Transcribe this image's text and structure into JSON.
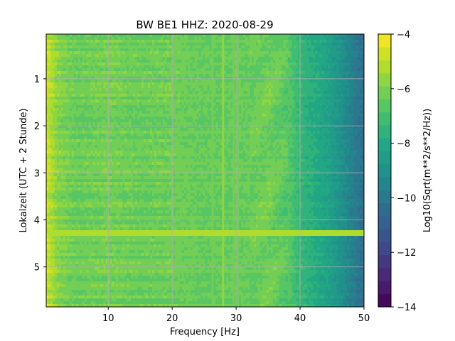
{
  "chart_data": {
    "type": "heatmap",
    "title": "BW BE1  HHZ: 2020-08-29",
    "xlabel": "Frequency [Hz]",
    "ylabel": "Lokalzeit (UTC + 2 Stunde)",
    "xlim": [
      0.3,
      50
    ],
    "ylim": [
      5.85,
      0.05
    ],
    "y_inverted": true,
    "xticks": [
      10,
      20,
      30,
      40,
      50
    ],
    "yticks": [
      1,
      2,
      3,
      4,
      5
    ],
    "grid": true,
    "colormap": "viridis (21 discrete levels)",
    "colorbar": {
      "label": "Log10(Sqrt(m**2/s**2/Hz))",
      "range": [
        -14,
        -4
      ],
      "ticks": [
        -4,
        -6,
        -8,
        -10,
        -12,
        -14
      ]
    },
    "value_profile_by_frequency": {
      "frequency_hz": [
        0.5,
        1,
        2,
        5,
        10,
        15,
        20,
        25,
        30,
        35,
        38,
        40,
        42,
        44,
        46,
        48,
        50
      ],
      "log10_amplitude": [
        -4.8,
        -5.2,
        -5.8,
        -6.3,
        -6.1,
        -6.3,
        -6.2,
        -6.4,
        -6.4,
        -6.2,
        -6.6,
        -7.4,
        -7.8,
        -8.2,
        -8.8,
        -9.6,
        -10.4
      ]
    },
    "features": [
      {
        "type": "horizontal_line",
        "time": 4.28,
        "value": -5.2,
        "freq_range": [
          1,
          50
        ]
      },
      {
        "type": "vertical_line",
        "frequency_hz": 26.2,
        "value": -6.0
      },
      {
        "type": "vertical_line",
        "frequency_hz": 28.0,
        "value": -5.8
      },
      {
        "type": "vertical_line",
        "frequency_hz": 29.6,
        "value": -6.0
      },
      {
        "type": "vertical_line",
        "frequency_hz": 30.4,
        "value": -6.1
      }
    ]
  },
  "colors": {
    "viridis": [
      "#440154",
      "#482475",
      "#414487",
      "#355f8d",
      "#2a788e",
      "#21918c",
      "#22a884",
      "#44bf70",
      "#7ad151",
      "#bddf26",
      "#fde725"
    ]
  }
}
